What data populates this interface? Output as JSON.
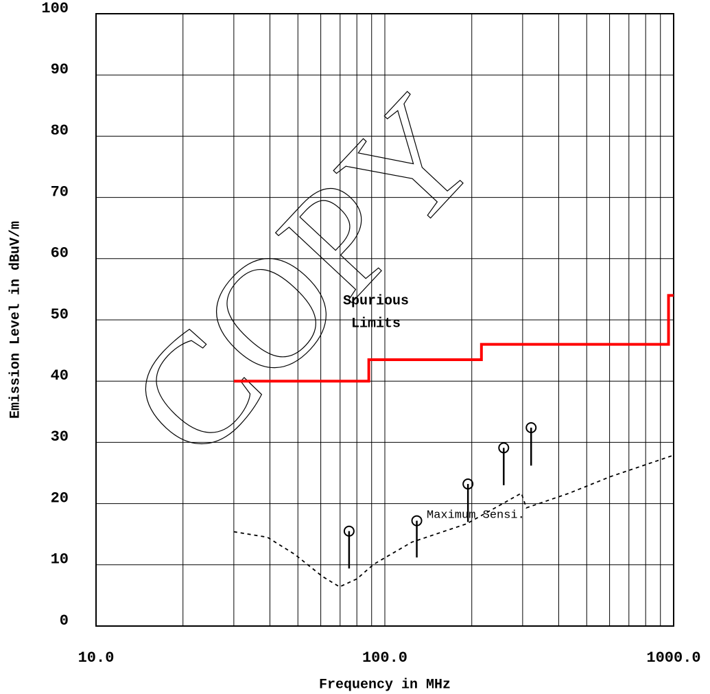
{
  "chart_data": {
    "type": "emission",
    "xlabel": "Frequency in MHz",
    "ylabel": "Emission Level in dBuV/m",
    "xscale": "log",
    "xlim": [
      10,
      1000
    ],
    "ylim": [
      0,
      100
    ],
    "xticks": [
      {
        "value": 10,
        "label": "10.0"
      },
      {
        "value": 100,
        "label": "100.0"
      },
      {
        "value": 1000,
        "label": "1000.0"
      }
    ],
    "xminorticks": [
      20,
      30,
      40,
      50,
      60,
      70,
      80,
      90,
      200,
      300,
      400,
      500,
      600,
      700,
      800,
      900
    ],
    "yticks": [
      0,
      10,
      20,
      30,
      40,
      50,
      60,
      70,
      80,
      90,
      100
    ],
    "grid": true,
    "watermark": "COPY",
    "limit": {
      "label": [
        "Spurious",
        "Limits"
      ],
      "color": "#ff0000",
      "x": [
        30,
        88,
        88,
        216,
        216,
        960,
        960,
        1000
      ],
      "values": [
        40,
        40,
        43.5,
        43.5,
        46,
        46,
        54,
        54
      ]
    },
    "sensitivity": {
      "label": "Maximum Sensi.",
      "color": "#000000",
      "x": [
        30,
        39.2,
        48.8,
        60.8,
        69.7,
        80,
        91.6,
        124,
        192,
        297,
        309,
        435,
        604,
        1000
      ],
      "values": [
        15.4,
        14.5,
        11.7,
        8.1,
        6.4,
        7.7,
        10.1,
        13.7,
        16.7,
        21.7,
        19.3,
        21.7,
        24.4,
        27.9
      ]
    },
    "measurements": {
      "color": "#000000",
      "x": [
        75.2,
        129,
        194,
        258,
        321
      ],
      "values": [
        15.5,
        17.2,
        23.2,
        29.1,
        32.4
      ],
      "low": [
        9.4,
        11.2,
        17.0,
        23.0,
        26.2
      ]
    }
  }
}
